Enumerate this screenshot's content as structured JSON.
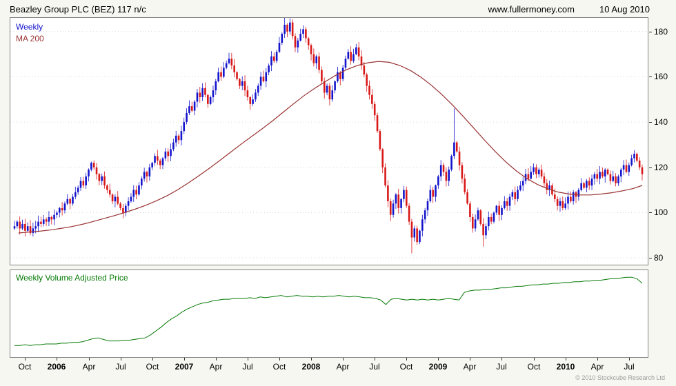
{
  "header": {
    "title": "Beazley Group PLC (BEZ) 117 n/c",
    "website": "www.fullermoney.com",
    "date": "10 Aug 2010"
  },
  "main_panel": {
    "legend_weekly": "Weekly",
    "legend_ma": "MA 200"
  },
  "volume_panel": {
    "label": "Weekly Volume Adjusted Price"
  },
  "footer": {
    "copyright": "© 2010 Stockcube Research Ltd"
  },
  "chart_data": [
    {
      "type": "candlestick",
      "interval": "Weekly",
      "instrument": "Beazley Group PLC",
      "ticker": "BEZ",
      "last_price": 117,
      "change": "n/c",
      "overlay": "MA 200",
      "legend_position": "top-left",
      "grid": "horizontal-dotted",
      "ylim": [
        77,
        186
      ],
      "y_ticks": [
        80,
        100,
        120,
        140,
        160,
        180
      ],
      "x_ticks": [
        {
          "label": "Oct",
          "month": 1
        },
        {
          "label": "2006",
          "month": 4
        },
        {
          "label": "Apr",
          "month": 7
        },
        {
          "label": "Jul",
          "month": 10
        },
        {
          "label": "Oct",
          "month": 13
        },
        {
          "label": "2007",
          "month": 16
        },
        {
          "label": "Apr",
          "month": 19
        },
        {
          "label": "Jul",
          "month": 22
        },
        {
          "label": "Oct",
          "month": 25
        },
        {
          "label": "2008",
          "month": 28
        },
        {
          "label": "Apr",
          "month": 31
        },
        {
          "label": "Jul",
          "month": 34
        },
        {
          "label": "Oct",
          "month": 37
        },
        {
          "label": "2009",
          "month": 40
        },
        {
          "label": "Apr",
          "month": 43
        },
        {
          "label": "Jul",
          "month": 46
        },
        {
          "label": "Oct",
          "month": 49
        },
        {
          "label": "2010",
          "month": 52
        },
        {
          "label": "Apr",
          "month": 55
        },
        {
          "label": "Jul",
          "month": 58
        }
      ],
      "weekly_closes": [
        94,
        96,
        93,
        95,
        92,
        94,
        91,
        93,
        94,
        96,
        95,
        97,
        96,
        98,
        97,
        99,
        100,
        102,
        101,
        104,
        106,
        104,
        107,
        109,
        111,
        114,
        112,
        116,
        119,
        122,
        120,
        117,
        114,
        116,
        112,
        110,
        108,
        105,
        107,
        104,
        102,
        100,
        103,
        105,
        107,
        110,
        108,
        112,
        115,
        118,
        116,
        120,
        122,
        125,
        123,
        121,
        124,
        127,
        125,
        128,
        131,
        134,
        132,
        136,
        140,
        144,
        147,
        145,
        149,
        153,
        151,
        155,
        152,
        148,
        151,
        154,
        158,
        162,
        160,
        164,
        166,
        168,
        165,
        162,
        159,
        156,
        158,
        154,
        151,
        148,
        150,
        153,
        156,
        160,
        158,
        162,
        165,
        169,
        167,
        171,
        175,
        179,
        183,
        180,
        184,
        178,
        173,
        176,
        179,
        181,
        177,
        174,
        170,
        166,
        169,
        163,
        158,
        153,
        156,
        150,
        154,
        158,
        162,
        159,
        164,
        168,
        171,
        167,
        170,
        173,
        169,
        165,
        161,
        156,
        152,
        148,
        143,
        136,
        128,
        120,
        112,
        105,
        99,
        104,
        108,
        102,
        106,
        110,
        103,
        96,
        89,
        93,
        87,
        92,
        97,
        101,
        105,
        110,
        107,
        112,
        116,
        121,
        118,
        114,
        119,
        125,
        131,
        127,
        121,
        115,
        109,
        104,
        98,
        93,
        97,
        101,
        95,
        90,
        94,
        98,
        96,
        100,
        103,
        99,
        102,
        105,
        103,
        107,
        109,
        106,
        110,
        112,
        114,
        117,
        115,
        118,
        120,
        117,
        119,
        116,
        113,
        110,
        112,
        108,
        106,
        103,
        105,
        102,
        104,
        107,
        105,
        109,
        107,
        110,
        113,
        111,
        114,
        112,
        115,
        117,
        115,
        118,
        116,
        119,
        117,
        114,
        116,
        113,
        116,
        119,
        121,
        118,
        121,
        124,
        126,
        123,
        120,
        117
      ],
      "wick_overrides": [
        [
          102,
          "h",
          186
        ],
        [
          150,
          "l",
          82
        ],
        [
          166,
          "h",
          146
        ],
        [
          177,
          "l",
          85
        ]
      ],
      "ma200_monthly": [
        91,
        91.4,
        91.8,
        92.3,
        93,
        93.8,
        94.8,
        96,
        97.3,
        98.6,
        100,
        101.5,
        103.2,
        105.2,
        107.4,
        110,
        113,
        116.2,
        119.5,
        123,
        126.6,
        130.2,
        133.6,
        137,
        140.6,
        144.4,
        148.2,
        151.8,
        155,
        158,
        160.8,
        163.2,
        165,
        166.2,
        166.8,
        166.4,
        165,
        162.8,
        159.8,
        156.2,
        152,
        147.4,
        142.4,
        137.2,
        132,
        127,
        122.4,
        118.4,
        115,
        112.4,
        110.4,
        109,
        108.2,
        107.8,
        107.8,
        108.2,
        108.8,
        109.6,
        110.6,
        112
      ],
      "colors": {
        "up": "#1414cc",
        "down": "#d91818",
        "ma": "#993333",
        "grid": "#d9d9d9"
      }
    },
    {
      "type": "line",
      "label": "Weekly Volume Adjusted Price",
      "ylim": [
        0,
        100
      ],
      "color": "#077b07",
      "values": [
        8,
        8,
        9,
        8,
        9,
        9,
        10,
        10,
        10,
        11,
        11,
        12,
        12,
        13,
        15,
        17,
        18,
        16,
        14,
        14,
        14,
        15,
        15,
        16,
        17,
        18,
        22,
        27,
        32,
        38,
        43,
        47,
        52,
        56,
        59,
        62,
        64,
        65,
        67,
        68,
        69,
        69,
        70,
        70,
        70,
        71,
        70,
        72,
        71,
        72,
        73,
        74,
        72,
        73,
        74,
        73,
        73,
        72,
        73,
        72,
        73,
        73,
        74,
        73,
        72,
        73,
        72,
        71,
        71,
        70,
        68,
        62,
        69,
        70,
        69,
        68,
        69,
        68,
        69,
        68,
        69,
        68,
        69,
        70,
        69,
        68,
        78,
        80,
        81,
        81,
        82,
        82,
        83,
        84,
        84,
        85,
        86,
        86,
        87,
        88,
        88,
        89,
        89,
        90,
        90,
        91,
        91,
        92,
        92,
        93,
        93,
        94,
        94,
        95,
        96,
        96,
        97,
        98,
        98,
        96,
        90
      ]
    }
  ]
}
